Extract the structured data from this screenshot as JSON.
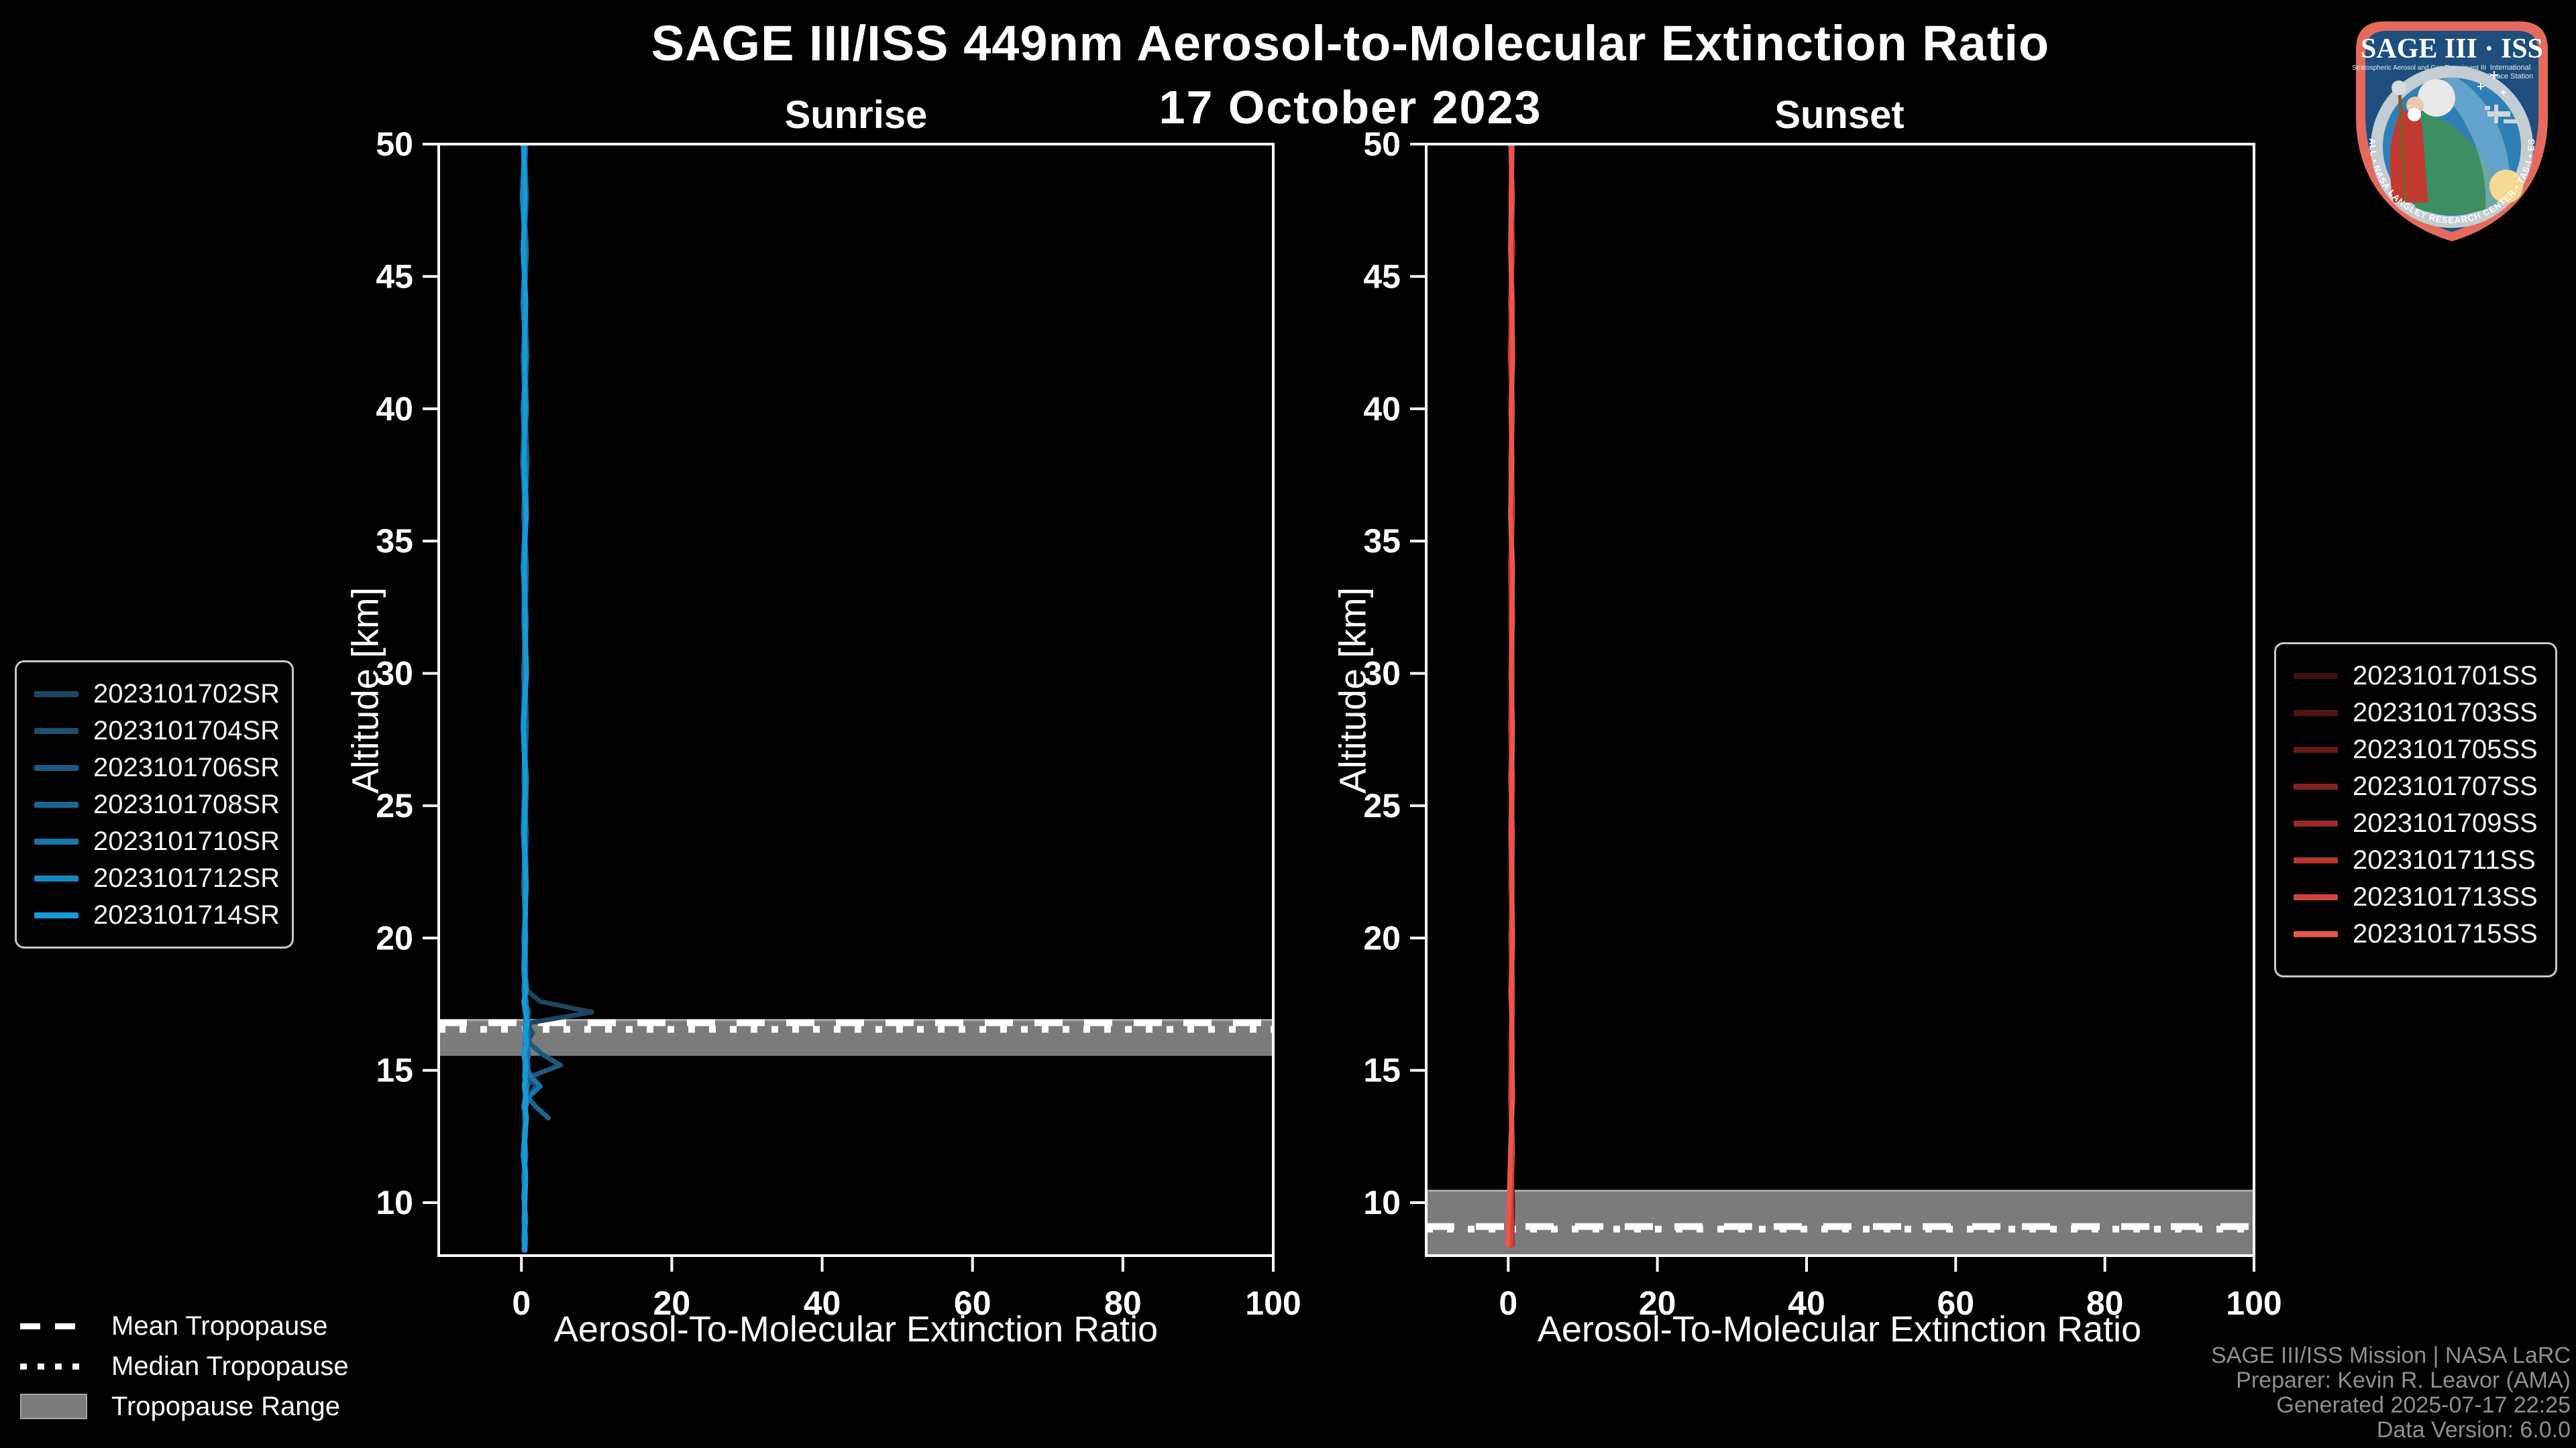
{
  "title": "SAGE III/ISS 449nm Aerosol-to-Molecular Extinction Ratio",
  "subtitle": "17 October 2023",
  "logo": {
    "title": "SAGE III · ISS",
    "subtitle_left": "Stratospheric Aerosol and Gas Experiment III",
    "subtitle_right_1": "International",
    "subtitle_right_2": "Space Station",
    "ring_text": "BALL • NASA LANGLEY RESEARCH CENTER • TAS-I • ESA"
  },
  "tropopause_legend": {
    "mean": "Mean Tropopause",
    "median": "Median Tropopause",
    "range": "Tropopause Range"
  },
  "footer": {
    "lines": [
      "SAGE III/ISS Mission | NASA LaRC",
      "Preparer: Kevin R. Leavor (AMA)",
      "Generated 2025-07-17 22:25",
      "Data Version: 6.0.0"
    ]
  },
  "chart_data": [
    {
      "type": "line",
      "panel": "sunrise",
      "title": "Sunrise",
      "xlabel": "Aerosol-To-Molecular Extinction Ratio",
      "ylabel": "Altitude [km]",
      "xlim": [
        -11,
        100
      ],
      "ylim": [
        8,
        50
      ],
      "xticks": [
        0,
        20,
        40,
        60,
        80,
        100
      ],
      "yticks": [
        10,
        15,
        20,
        25,
        30,
        35,
        40,
        45,
        50
      ],
      "grid": false,
      "legend_position": "outside-left",
      "tropopause": {
        "mean_km": 16.8,
        "median_km": 16.55,
        "range_km": [
          15.55,
          16.9
        ]
      },
      "alt_grid": [
        50,
        48,
        46,
        44,
        42,
        40,
        38,
        36,
        34,
        32,
        30,
        28,
        26,
        24,
        22,
        20,
        18.8,
        18.0,
        17.6,
        17.2,
        16.8,
        16.4,
        16.0,
        15.6,
        15.2,
        14.8,
        14.4,
        14.0,
        13.6,
        13.2,
        12.6,
        11.8,
        11.0,
        10.2,
        9.4,
        8.6,
        8.2
      ],
      "series": [
        {
          "name": "2023101702SR",
          "color": "#1c4660",
          "vals": [
            0.3,
            0.6,
            0.2,
            0.5,
            0.8,
            0.4,
            0.1,
            0.5,
            0.3,
            0.7,
            0.4,
            0.2,
            0.6,
            0.3,
            0.5,
            0.4,
            0.5,
            0.8,
            2.5,
            9.4,
            1.2,
            0.6,
            0.5,
            0.7,
            0.4,
            0.6,
            0.3,
            0.5,
            0.4,
            0.6,
            0.3,
            0.5,
            0.4,
            0.3,
            0.5,
            0.4,
            0.3
          ]
        },
        {
          "name": "2023101704SR",
          "color": "#1b4f70",
          "vals": [
            0.5,
            0.2,
            0.6,
            0.3,
            0.5,
            0.7,
            0.3,
            0.6,
            0.4,
            0.3,
            0.6,
            0.5,
            0.3,
            0.7,
            0.4,
            0.5,
            0.4,
            0.6,
            0.5,
            1.0,
            0.7,
            1.5,
            0.6,
            0.5,
            0.8,
            0.5,
            2.0,
            0.7,
            0.5,
            0.4,
            0.6,
            0.3,
            0.5,
            0.4,
            0.3,
            0.5,
            0.4
          ]
        },
        {
          "name": "2023101706SR",
          "color": "#1a5a81",
          "vals": [
            0.4,
            0.7,
            0.3,
            0.6,
            0.2,
            0.5,
            0.8,
            0.4,
            0.6,
            0.3,
            0.5,
            0.7,
            0.4,
            0.2,
            0.6,
            0.5,
            0.6,
            0.4,
            0.7,
            0.5,
            0.8,
            0.6,
            1.2,
            2.8,
            5.2,
            1.5,
            0.8,
            0.6,
            0.5,
            0.7,
            0.4,
            0.6,
            0.3,
            0.5,
            0.4,
            0.6,
            0.5
          ]
        },
        {
          "name": "2023101708SR",
          "color": "#196793",
          "n": 30,
          "vals": [
            0.6,
            0.3,
            0.7,
            0.4,
            0.6,
            0.2,
            0.5,
            0.3,
            0.7,
            0.5,
            0.3,
            0.6,
            0.4,
            0.5,
            0.7,
            0.3,
            0.5,
            0.7,
            0.4,
            0.6,
            0.9,
            0.7,
            0.5,
            0.6,
            0.9,
            0.7,
            0.6,
            0.8,
            2.0,
            3.6
          ]
        },
        {
          "name": "2023101710SR",
          "color": "#1876a8",
          "vals": [
            0.2,
            0.5,
            0.3,
            0.6,
            0.4,
            0.7,
            0.3,
            0.5,
            0.2,
            0.6,
            0.4,
            0.3,
            0.7,
            0.5,
            0.3,
            0.6,
            0.5,
            0.3,
            0.6,
            0.8,
            0.6,
            0.9,
            0.7,
            1.0,
            0.6,
            1.2,
            2.5,
            1.0,
            0.6,
            0.5,
            0.4,
            0.6,
            0.3,
            0.5,
            0.4,
            0.3,
            0.4
          ]
        },
        {
          "name": "2023101712SR",
          "color": "#1787bf",
          "vals": [
            0.4,
            0.1,
            0.5,
            0.2,
            0.6,
            0.3,
            0.5,
            0.7,
            0.3,
            0.4,
            0.6,
            0.2,
            0.5,
            0.3,
            0.6,
            0.4,
            0.3,
            0.5,
            0.4,
            0.7,
            0.5,
            0.4,
            0.6,
            0.3,
            0.5,
            0.4,
            0.7,
            0.5,
            0.3,
            0.6,
            0.4,
            0.2,
            0.5,
            0.3,
            0.6,
            0.4,
            0.5
          ]
        },
        {
          "name": "2023101714SR",
          "color": "#1699d8",
          "vals": [
            0.3,
            0.5,
            0.2,
            0.6,
            0.4,
            0.5,
            0.3,
            0.6,
            0.4,
            0.5,
            0.7,
            0.3,
            0.5,
            0.4,
            0.6,
            0.5,
            0.4,
            0.6,
            0.3,
            0.5,
            0.8,
            0.5,
            0.7,
            0.4,
            0.6,
            0.5,
            0.4,
            0.6,
            0.5,
            0.7,
            0.5,
            0.4,
            0.6,
            0.5,
            0.4,
            0.5,
            0.4
          ]
        }
      ]
    },
    {
      "type": "line",
      "panel": "sunset",
      "title": "Sunset",
      "xlabel": "Aerosol-To-Molecular Extinction Ratio",
      "ylabel": "Altitude [km]",
      "xlim": [
        -11,
        100
      ],
      "ylim": [
        8,
        50
      ],
      "xticks": [
        0,
        20,
        40,
        60,
        80,
        100
      ],
      "yticks": [
        10,
        15,
        20,
        25,
        30,
        35,
        40,
        45,
        50
      ],
      "grid": false,
      "legend_position": "outside-right",
      "tropopause": {
        "mean_km": 9.1,
        "median_km": 9.0,
        "range_km": [
          8.0,
          10.45
        ]
      },
      "alt_grid": [
        50,
        48,
        46,
        44,
        42,
        40,
        38,
        36,
        34,
        32,
        30,
        28,
        26,
        24,
        22,
        20,
        18,
        16,
        14,
        12,
        10,
        8.4
      ],
      "series": [
        {
          "name": "2023101701SS",
          "color": "#3f0e0e",
          "vals": [
            0.4,
            0.6,
            0.3,
            0.5,
            0.7,
            0.4,
            0.6,
            0.3,
            0.5,
            0.4,
            0.6,
            0.5,
            0.3,
            0.6,
            0.4,
            0.5,
            0.3,
            0.6,
            0.4,
            0.5,
            0.3,
            0.4
          ]
        },
        {
          "name": "2023101703SS",
          "color": "#551414",
          "vals": [
            0.5,
            0.3,
            0.6,
            0.4,
            0.2,
            0.5,
            0.3,
            0.6,
            0.4,
            0.5,
            0.3,
            0.6,
            0.4,
            0.3,
            0.5,
            0.4,
            0.6,
            0.3,
            0.5,
            0.4,
            0.6,
            0.5
          ]
        },
        {
          "name": "2023101705SS",
          "color": "#6b1a1a",
          "vals": [
            0.3,
            0.5,
            0.4,
            0.6,
            0.5,
            0.3,
            0.5,
            0.4,
            0.6,
            0.3,
            0.5,
            0.4,
            0.6,
            0.5,
            0.3,
            0.6,
            0.4,
            0.5,
            0.3,
            0.6,
            0.4,
            0.3
          ]
        },
        {
          "name": "2023101707SS",
          "color": "#832221",
          "vals": [
            0.6,
            0.4,
            0.5,
            0.3,
            0.6,
            0.5,
            0.4,
            0.5,
            0.3,
            0.6,
            0.4,
            0.3,
            0.5,
            0.4,
            0.6,
            0.3,
            0.5,
            0.4,
            0.6,
            0.3,
            0.5,
            0.4
          ]
        },
        {
          "name": "2023101709SS",
          "color": "#9c2b28",
          "vals": [
            0.4,
            0.5,
            0.3,
            0.6,
            0.4,
            0.6,
            0.3,
            0.5,
            0.4,
            0.5,
            0.6,
            0.4,
            0.5,
            0.3,
            0.4,
            0.5,
            0.3,
            0.6,
            0.4,
            0.5,
            0.3,
            0.5
          ]
        },
        {
          "name": "2023101711SS",
          "color": "#b63630",
          "vals": [
            0.5,
            0.4,
            0.6,
            0.3,
            0.5,
            0.4,
            0.5,
            0.6,
            0.3,
            0.4,
            0.5,
            0.3,
            0.6,
            0.5,
            0.4,
            0.6,
            0.5,
            0.4,
            0.3,
            0.5,
            0.4,
            0.6
          ]
        },
        {
          "name": "2023101713SS",
          "color": "#d14339",
          "vals": [
            0.3,
            0.6,
            0.4,
            0.5,
            0.3,
            0.6,
            0.4,
            0.3,
            0.5,
            0.6,
            0.4,
            0.5,
            0.3,
            0.6,
            0.5,
            0.4,
            0.6,
            0.5,
            0.4,
            0.6,
            0.3,
            0.4
          ]
        },
        {
          "name": "2023101715SS",
          "color": "#eb5649",
          "vals": [
            0.5,
            0.4,
            0.3,
            0.5,
            0.6,
            0.4,
            0.5,
            0.3,
            0.6,
            0.5,
            0.4,
            0.6,
            0.5,
            0.4,
            0.5,
            0.6,
            0.4,
            0.5,
            0.6,
            0.3,
            0.1,
            -0.1
          ]
        }
      ]
    }
  ]
}
